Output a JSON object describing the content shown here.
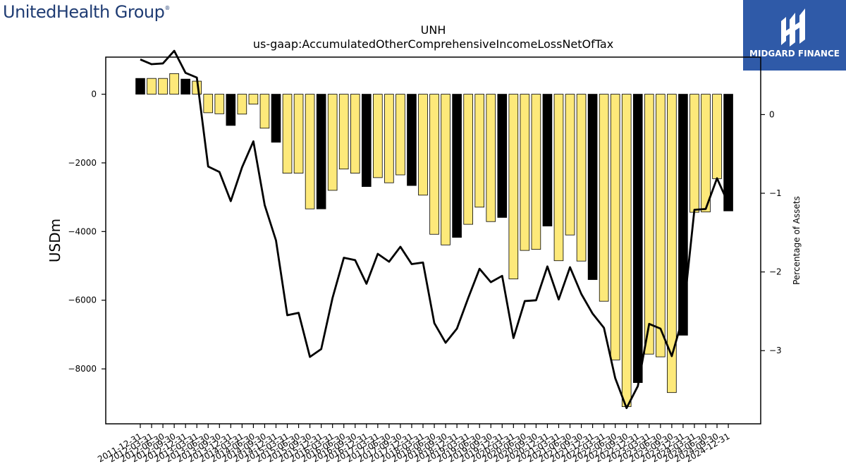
{
  "brand": {
    "left_logo": "UnitedHealth Group",
    "left_logo_mark": "®",
    "right_logo": "MIDGARD FINANCE",
    "colors": {
      "left_logo": "#1f3c73",
      "right_logo_bg": "#2f5aa8",
      "bar_yellow": "#fde97a",
      "bar_black": "#000000"
    }
  },
  "chart_data": {
    "type": "bar",
    "title": "UNH",
    "subtitle": "us-gaap:AccumulatedOtherComprehensiveIncomeLossNetOfTax",
    "ylabel": "USDm",
    "ylabel_right": "Percentage of Assets",
    "ylim": [
      -9600,
      1080
    ],
    "ylim_right": [
      -3.93,
      0.73
    ],
    "yticks": [
      0,
      -2000,
      -4000,
      -6000,
      -8000
    ],
    "yticks_right": [
      0,
      -1,
      -2,
      -3
    ],
    "ytick_labels": [
      "0",
      "−2000",
      "−4000",
      "−6000",
      "−8000"
    ],
    "ytick_labels_right": [
      "0",
      "−1",
      "−2",
      "−3"
    ],
    "categories": [
      "2011-12-31",
      "2012-03-31",
      "2012-06-30",
      "2012-09-30",
      "2012-12-31",
      "2013-03-31",
      "2013-06-30",
      "2013-09-30",
      "2013-12-31",
      "2014-03-31",
      "2014-06-30",
      "2014-09-30",
      "2014-12-31",
      "2015-03-31",
      "2015-06-30",
      "2015-09-30",
      "2015-12-31",
      "2016-03-31",
      "2016-06-30",
      "2016-09-30",
      "2016-12-31",
      "2017-03-31",
      "2017-06-30",
      "2017-09-30",
      "2017-12-31",
      "2018-03-31",
      "2018-06-30",
      "2018-09-30",
      "2018-12-31",
      "2019-03-31",
      "2019-06-30",
      "2019-09-30",
      "2019-12-31",
      "2020-03-31",
      "2020-06-30",
      "2020-09-30",
      "2020-12-31",
      "2021-03-31",
      "2021-06-30",
      "2021-09-30",
      "2021-12-31",
      "2022-03-31",
      "2022-06-30",
      "2022-09-30",
      "2022-12-31",
      "2023-03-31",
      "2023-06-30",
      "2023-09-30",
      "2023-12-31",
      "2024-03-31",
      "2024-06-30",
      "2024-09-30",
      "2024-12-31"
    ],
    "series": [
      {
        "values": [
          460,
          460,
          460,
          600,
          440,
          380,
          -540,
          -570,
          -910,
          -580,
          -290,
          -990,
          -1400,
          -2300,
          -2300,
          -3340,
          -3340,
          -2800,
          -2180,
          -2300,
          -2690,
          -2430,
          -2580,
          -2350,
          -2660,
          -2940,
          -4080,
          -4390,
          -4170,
          -3790,
          -3290,
          -3710,
          -3590,
          -5380,
          -4550,
          -4520,
          -3840,
          -4850,
          -4100,
          -4860,
          -5400,
          -6030,
          -7740,
          -9100,
          -8400,
          -7570,
          -7650,
          -8690,
          -7020,
          -3440,
          -3430,
          -2460,
          -3400
        ],
        "bar_colors": [
          "black",
          "yellow",
          "yellow",
          "yellow",
          "black",
          "yellow",
          "yellow",
          "yellow",
          "black",
          "yellow",
          "yellow",
          "yellow",
          "black",
          "yellow",
          "yellow",
          "yellow",
          "black",
          "yellow",
          "yellow",
          "yellow",
          "black",
          "yellow",
          "yellow",
          "yellow",
          "black",
          "yellow",
          "yellow",
          "yellow",
          "black",
          "yellow",
          "yellow",
          "yellow",
          "black",
          "yellow",
          "yellow",
          "yellow",
          "black",
          "yellow",
          "yellow",
          "yellow",
          "black",
          "yellow",
          "yellow",
          "yellow",
          "black",
          "yellow",
          "yellow",
          "yellow",
          "black",
          "yellow",
          "yellow",
          "yellow",
          "black"
        ]
      },
      {
        "axis": "right",
        "values": [
          0.7,
          0.64,
          0.65,
          0.81,
          0.53,
          0.47,
          -0.66,
          -0.73,
          -1.1,
          -0.67,
          -0.34,
          -1.15,
          -1.6,
          -2.55,
          -2.52,
          -3.08,
          -2.98,
          -2.33,
          -1.82,
          -1.85,
          -2.15,
          -1.77,
          -1.87,
          -1.68,
          -1.9,
          -1.88,
          -2.65,
          -2.9,
          -2.72,
          -2.33,
          -1.96,
          -2.13,
          -2.05,
          -2.84,
          -2.37,
          -2.36,
          -1.93,
          -2.35,
          -1.94,
          -2.28,
          -2.53,
          -2.71,
          -3.35,
          -3.73,
          -3.45,
          -2.66,
          -2.72,
          -3.07,
          -2.57,
          -1.21,
          -1.2,
          -0.81,
          -1.13
        ]
      }
    ]
  }
}
